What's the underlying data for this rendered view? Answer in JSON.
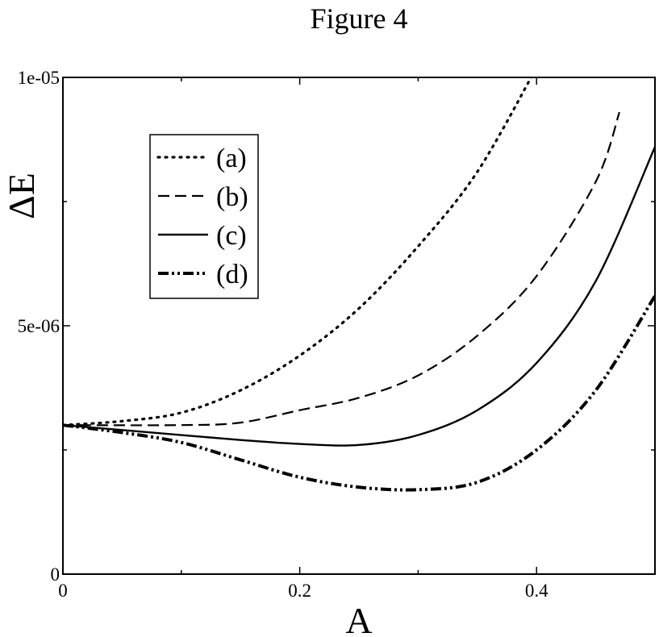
{
  "chart_data": {
    "type": "line",
    "title": "Figure 4",
    "xlabel": "A",
    "ylabel": "ΔE",
    "xlim": [
      0,
      0.5
    ],
    "ylim": [
      0,
      1e-05
    ],
    "x_ticks": [
      0,
      0.2,
      0.4
    ],
    "x_tick_labels": [
      "0",
      "0.2",
      "0.4"
    ],
    "y_ticks": [
      0,
      5e-06,
      1e-05
    ],
    "y_tick_labels": [
      "0",
      "5e-06",
      "1e-05"
    ],
    "grid": false,
    "legend_position": "top-left",
    "series": [
      {
        "name": "(a)",
        "style": "dotted",
        "color": "#000000",
        "x": [
          0,
          0.05,
          0.1,
          0.15,
          0.2,
          0.25,
          0.3,
          0.35,
          0.4
        ],
        "y": [
          3e-06,
          3.08e-06,
          3.25e-06,
          3.7e-06,
          4.4e-06,
          5.35e-06,
          6.6e-06,
          8.1e-06,
          1.02e-05
        ]
      },
      {
        "name": "(b)",
        "style": "dashed",
        "color": "#000000",
        "x": [
          0,
          0.1,
          0.15,
          0.2,
          0.25,
          0.3,
          0.35,
          0.4,
          0.45,
          0.47
        ],
        "y": [
          3e-06,
          3e-06,
          3.05e-06,
          3.3e-06,
          3.55e-06,
          4e-06,
          4.8e-06,
          6e-06,
          7.9e-06,
          9.3e-06
        ]
      },
      {
        "name": "(c)",
        "style": "solid",
        "color": "#000000",
        "x": [
          0,
          0.05,
          0.1,
          0.15,
          0.2,
          0.25,
          0.3,
          0.35,
          0.4,
          0.45,
          0.5
        ],
        "y": [
          3e-06,
          2.9e-06,
          2.8e-06,
          2.7e-06,
          2.62e-06,
          2.6e-06,
          2.8e-06,
          3.3e-06,
          4.25e-06,
          5.9e-06,
          8.6e-06
        ]
      },
      {
        "name": "(d)",
        "style": "dash-dot-dot",
        "color": "#000000",
        "x": [
          0,
          0.05,
          0.1,
          0.15,
          0.2,
          0.25,
          0.3,
          0.35,
          0.4,
          0.45,
          0.5
        ],
        "y": [
          3e-06,
          2.85e-06,
          2.65e-06,
          2.3e-06,
          1.95e-06,
          1.75e-06,
          1.7e-06,
          1.85e-06,
          2.5e-06,
          3.7e-06,
          5.6e-06
        ]
      }
    ]
  }
}
